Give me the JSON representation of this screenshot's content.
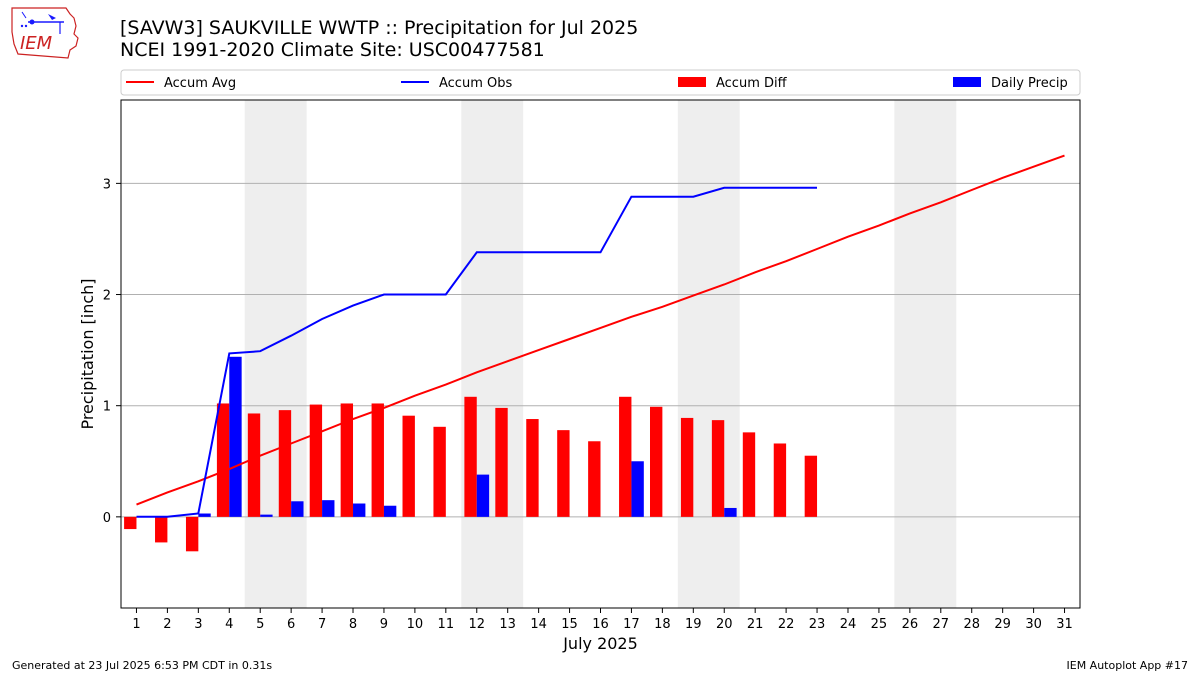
{
  "header": {
    "title_line1": "[SAVW3] SAUKVILLE WWTP :: Precipitation for Jul 2025",
    "title_line2": "NCEI 1991-2020 Climate Site: USC00477581"
  },
  "logo": {
    "text": "IEM",
    "icon": "iem-iowa-logo"
  },
  "footer": {
    "generated": "Generated at 23 Jul 2025 6:53 PM CDT in 0.31s",
    "app": "IEM Autoplot App #17"
  },
  "colors": {
    "accum_avg": "#ff0000",
    "accum_obs": "#0000ff",
    "accum_diff": "#ff0000",
    "daily_precip": "#0000ff",
    "weekend_shade": "#eeeeee",
    "grid": "#b0b0b0"
  },
  "chart_data": {
    "type": "bar",
    "xlabel": "July 2025",
    "ylabel": "Precipitation [inch]",
    "days": [
      1,
      2,
      3,
      4,
      5,
      6,
      7,
      8,
      9,
      10,
      11,
      12,
      13,
      14,
      15,
      16,
      17,
      18,
      19,
      20,
      21,
      22,
      23,
      24,
      25,
      26,
      27,
      28,
      29,
      30,
      31
    ],
    "x_tick_labels": [
      "1",
      "2",
      "3",
      "4",
      "5",
      "6",
      "7",
      "8",
      "9",
      "10",
      "11",
      "12",
      "13",
      "14",
      "15",
      "16",
      "17",
      "18",
      "19",
      "20",
      "21",
      "22",
      "23",
      "24",
      "25",
      "26",
      "27",
      "28",
      "29",
      "30",
      "31"
    ],
    "y_ticks": [
      0,
      1,
      2,
      3
    ],
    "y_tick_labels": [
      "0",
      "1",
      "2",
      "3"
    ],
    "ylim": [
      -0.82,
      3.75
    ],
    "xlim": [
      0.5,
      31.5
    ],
    "grid": "horizontal",
    "legend_position": "top",
    "shaded_weekends": [
      [
        5,
        6
      ],
      [
        12,
        13
      ],
      [
        19,
        20
      ],
      [
        26,
        27
      ]
    ],
    "legend": [
      {
        "label": "Accum Avg",
        "kind": "line",
        "series": "accum_avg"
      },
      {
        "label": "Accum Obs",
        "kind": "line",
        "series": "accum_obs"
      },
      {
        "label": "Accum Diff",
        "kind": "bar",
        "series": "accum_diff"
      },
      {
        "label": "Daily Precip",
        "kind": "bar",
        "series": "daily_precip"
      }
    ],
    "series": [
      {
        "name": "Accum Avg",
        "kind": "line",
        "color": "#ff0000",
        "values": [
          0.11,
          0.22,
          0.32,
          0.43,
          0.55,
          0.66,
          0.77,
          0.88,
          0.98,
          1.09,
          1.19,
          1.3,
          1.4,
          1.5,
          1.6,
          1.7,
          1.8,
          1.89,
          1.99,
          2.09,
          2.2,
          2.3,
          2.41,
          2.52,
          2.62,
          2.73,
          2.83,
          2.94,
          3.05,
          3.15,
          3.25
        ]
      },
      {
        "name": "Accum Obs",
        "kind": "line",
        "color": "#0000ff",
        "values": [
          0.0,
          0.0,
          0.03,
          1.47,
          1.49,
          1.63,
          1.78,
          1.9,
          2.0,
          2.0,
          2.0,
          2.38,
          2.38,
          2.38,
          2.38,
          2.38,
          2.88,
          2.88,
          2.88,
          2.96,
          2.96,
          2.96,
          2.96
        ]
      },
      {
        "name": "Accum Diff",
        "kind": "bar",
        "color": "#ff0000",
        "values": [
          -0.11,
          -0.23,
          -0.31,
          1.02,
          0.93,
          0.96,
          1.01,
          1.02,
          1.02,
          0.91,
          0.81,
          1.08,
          0.98,
          0.88,
          0.78,
          0.68,
          1.08,
          0.99,
          0.89,
          0.87,
          0.76,
          0.66,
          0.55
        ]
      },
      {
        "name": "Daily Precip",
        "kind": "bar",
        "color": "#0000ff",
        "values": [
          0.0,
          0.0,
          0.03,
          1.44,
          0.02,
          0.14,
          0.15,
          0.12,
          0.1,
          0.0,
          0.0,
          0.38,
          0.0,
          0.0,
          0.0,
          0.0,
          0.5,
          0.0,
          0.0,
          0.08,
          0.0,
          0.0,
          0.0
        ]
      }
    ]
  }
}
